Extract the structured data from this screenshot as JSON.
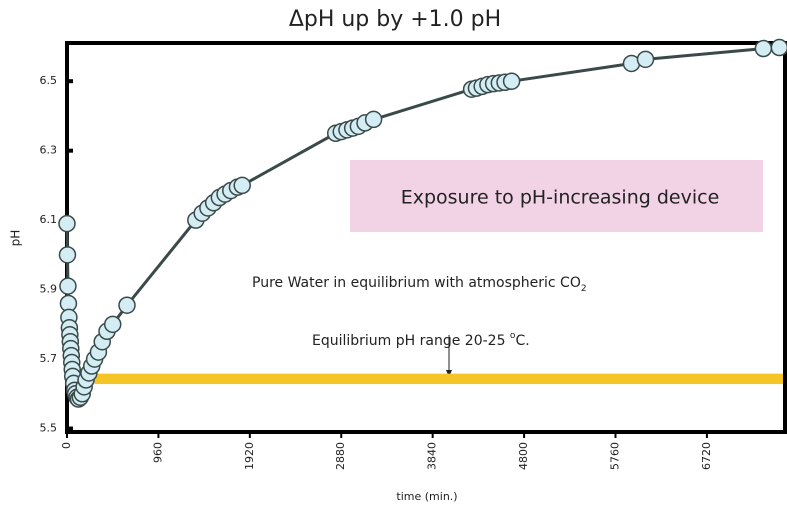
{
  "chart_data": {
    "type": "line",
    "title": "ΔpH up by +1.0 pH",
    "x_label": "time (min.)",
    "y_label": "pH",
    "annotations": {
      "device": "Exposure to pH-increasing device",
      "water": "Pure Water in equilibrium with atmospheric CO",
      "water_sub": "2",
      "range": "Equilibrium pH range 20-25 ",
      "range_sup": "o",
      "range_unit": "C."
    },
    "band": {
      "from": 5.628,
      "to": 5.658,
      "x_start": 290,
      "color": "#f5c425"
    },
    "xlim": [
      0,
      7540
    ],
    "ylim": [
      5.49,
      6.61
    ],
    "xticks": [
      0,
      960,
      1920,
      2880,
      3840,
      4800,
      5760,
      6720
    ],
    "yticks": [
      5.5,
      5.7,
      5.9,
      6.1,
      6.3,
      6.5
    ],
    "series": [
      {
        "name": "pH",
        "color": "#3a4a48",
        "marker_color": "#d4ecf4",
        "x": [
          0,
          5,
          10,
          15,
          20,
          25,
          30,
          35,
          40,
          45,
          50,
          55,
          60,
          70,
          80,
          90,
          105,
          120,
          140,
          160,
          180,
          200,
          230,
          260,
          290,
          330,
          370,
          420,
          480,
          630,
          1353,
          1420,
          1480,
          1540,
          1600,
          1660,
          1720,
          1790,
          1840,
          2822,
          2880,
          2940,
          3000,
          3060,
          3130,
          3220,
          4249,
          4300,
          4360,
          4420,
          4480,
          4540,
          4600,
          4669,
          5928,
          6075,
          7313,
          7481
        ],
        "values": [
          6.09,
          6.0,
          5.91,
          5.86,
          5.82,
          5.79,
          5.77,
          5.75,
          5.73,
          5.71,
          5.69,
          5.67,
          5.65,
          5.63,
          5.61,
          5.6,
          5.59,
          5.585,
          5.59,
          5.6,
          5.62,
          5.64,
          5.66,
          5.68,
          5.7,
          5.72,
          5.75,
          5.78,
          5.8,
          5.855,
          6.1,
          6.12,
          6.135,
          6.15,
          6.165,
          6.175,
          6.185,
          6.195,
          6.2,
          6.35,
          6.355,
          6.36,
          6.365,
          6.37,
          6.38,
          6.39,
          6.477,
          6.48,
          6.485,
          6.49,
          6.493,
          6.495,
          6.497,
          6.5,
          6.551,
          6.563,
          6.594,
          6.597
        ]
      }
    ]
  }
}
